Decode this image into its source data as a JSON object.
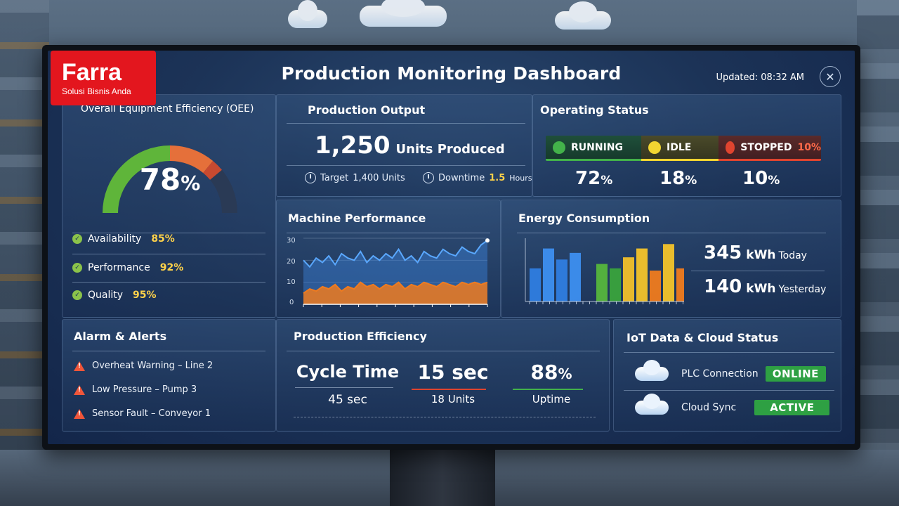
{
  "brand": {
    "name": "Farra",
    "tagline": "Solusi Bisnis Anda"
  },
  "header": {
    "title": "Production Monitoring Dashboard",
    "updated": "Updated: 08:32 AM",
    "close_glyph": "✕"
  },
  "oee": {
    "title": "Overall Equipment Efficiency (OEE)",
    "value_num": "78",
    "value_unit": "%",
    "level": 0.78,
    "metrics": [
      {
        "label": "Availability",
        "value": "85%"
      },
      {
        "label": "Performance",
        "value": "92%"
      },
      {
        "label": "Quality",
        "value": "95%"
      }
    ]
  },
  "production_output": {
    "title": "Production Output",
    "units": "1,250",
    "units_label": "Units Produced",
    "target_label": "Target",
    "target_value": "1,400 Units",
    "downtime_label": "Downtime",
    "downtime_value": "1.5",
    "downtime_unit": "Hours"
  },
  "operating_status": {
    "title": "Operating Status",
    "segments": [
      {
        "label": "RUNNING",
        "pct": "72",
        "color": "#43b24a"
      },
      {
        "label": "IDLE",
        "pct": "18",
        "color": "#f2d531"
      },
      {
        "label": "STOPPED",
        "extra": "10%",
        "pct": "10",
        "color": "#e0442f"
      }
    ],
    "pct_unit": "%"
  },
  "machine_performance": {
    "title": "Machine Performance",
    "y_ticks": [
      "30",
      "20",
      "10",
      "0"
    ]
  },
  "energy": {
    "title": "Energy Consumption",
    "today_value": "345",
    "today_unit": "kWh",
    "today_label": "Today",
    "yesterday_value": "140",
    "yesterday_unit": "kWh",
    "yesterday_label": "Yesterday"
  },
  "alarms": {
    "title": "Alarm & Alerts",
    "items": [
      "Overheat Warning – Line 2",
      "Low Pressure – Pump 3",
      "Sensor Fault – Conveyor 1"
    ]
  },
  "efficiency": {
    "title": "Production Efficiency",
    "cycle_label": "Cycle Time",
    "cycle_value": "45 sec",
    "rate_value": "15 sec",
    "rate_sub": "18 Units",
    "uptime_value": "88",
    "uptime_unit": "%",
    "uptime_label": "Uptime"
  },
  "iot": {
    "title": "IoT Data & Cloud Status",
    "rows": [
      {
        "label": "PLC Connection",
        "status": "ONLINE"
      },
      {
        "label": "Cloud Sync",
        "status": "ACTIVE"
      }
    ]
  },
  "chart_data": [
    {
      "type": "area",
      "title": "Machine Performance",
      "ylim": [
        0,
        30
      ],
      "y_ticks": [
        0,
        10,
        20,
        30
      ],
      "series": [
        {
          "values": [
            20,
            17,
            21,
            19,
            22,
            18,
            23,
            21,
            20,
            24,
            19,
            22,
            20,
            23,
            21,
            25,
            20,
            22,
            19,
            24,
            22,
            21,
            25,
            23,
            22,
            26,
            24,
            23,
            27,
            29
          ],
          "color": "#5aa8ff"
        },
        {
          "values": [
            5,
            7,
            6,
            8,
            7,
            9,
            6,
            8,
            7,
            10,
            8,
            9,
            7,
            9,
            8,
            10,
            7,
            9,
            8,
            10,
            9,
            8,
            10,
            9,
            8,
            10,
            9,
            10,
            9,
            10
          ],
          "color": "#f07b1e"
        }
      ]
    },
    {
      "type": "bar",
      "title": "Energy Consumption",
      "values": [
        15,
        24,
        19,
        22,
        0,
        17,
        15,
        20,
        24,
        14,
        26,
        15
      ],
      "colors": [
        "#2f7de0",
        "#3d8ff0",
        "#2f7de0",
        "#3d8ff0",
        "#000000",
        "#56b63c",
        "#3aa33c",
        "#f2c02a",
        "#f4c42a",
        "#f07b1e",
        "#f4c42a",
        "#f07b1e"
      ],
      "ylim": [
        0,
        28
      ]
    }
  ]
}
